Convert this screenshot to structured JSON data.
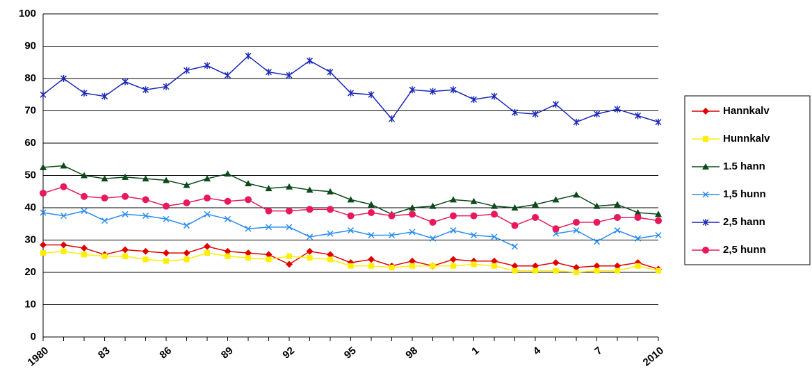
{
  "chart_data": {
    "type": "line",
    "categories": [
      "1980",
      null,
      null,
      "83",
      null,
      null,
      "86",
      null,
      null,
      "89",
      null,
      null,
      "92",
      null,
      null,
      "95",
      null,
      null,
      "98",
      null,
      null,
      "1",
      null,
      null,
      "4",
      null,
      null,
      "7",
      null,
      null,
      "2010"
    ],
    "ylim": [
      0,
      100
    ],
    "yticks": [
      0,
      10,
      20,
      30,
      40,
      50,
      60,
      70,
      80,
      90,
      100
    ],
    "grid": true,
    "legend": "right",
    "series": [
      {
        "name": "Hannkalv",
        "color": "#e00000",
        "marker": "diamond",
        "values": [
          28.5,
          28.5,
          27.5,
          25.5,
          27,
          26.5,
          26,
          26,
          28,
          26.5,
          26,
          25.5,
          22.5,
          26.5,
          25.5,
          23,
          24,
          22,
          23.5,
          22,
          24,
          23.5,
          23.5,
          22,
          22,
          23,
          21.5,
          22,
          22,
          23,
          21
        ]
      },
      {
        "name": "Hunnkalv",
        "color": "#ffee00",
        "marker": "square",
        "values": [
          26,
          26.5,
          25.5,
          25,
          25,
          24,
          23.5,
          24,
          26,
          25,
          24.5,
          24,
          25,
          24.5,
          24,
          22,
          22,
          21.5,
          22,
          22,
          22,
          22.5,
          22,
          20.5,
          20.5,
          20.5,
          20,
          20.5,
          20.5,
          22,
          20.5
        ]
      },
      {
        "name": "1.5 hann",
        "color": "#0b4a1a",
        "marker": "triangle",
        "values": [
          52.5,
          53,
          50,
          49,
          49.5,
          49,
          48.5,
          47,
          49,
          50.5,
          47.5,
          46,
          46.5,
          45.5,
          45,
          42.5,
          41,
          38,
          40,
          40.5,
          42.5,
          42,
          40.5,
          40,
          41,
          42.5,
          44,
          40.5,
          41,
          38.5,
          38
        ]
      },
      {
        "name": "1,5 hunn",
        "color": "#2a8cf0",
        "marker": "x",
        "values": [
          38.5,
          37.5,
          39,
          36,
          38,
          37.5,
          36.5,
          34.5,
          38,
          36.5,
          33.5,
          34,
          34,
          31,
          32,
          33,
          31.5,
          31.5,
          32.5,
          30.5,
          33,
          31.5,
          31,
          28,
          null,
          32,
          33,
          29.5,
          33,
          30.5,
          31.5
        ]
      },
      {
        "name": "2,5 hann",
        "color": "#1a27b8",
        "marker": "star",
        "values": [
          75,
          80,
          75.5,
          74.5,
          79,
          76.5,
          77.5,
          82.5,
          84,
          81,
          87,
          82,
          81,
          85.5,
          82,
          75.5,
          75,
          67.5,
          76.5,
          76,
          76.5,
          73.5,
          74.5,
          69.5,
          69,
          72,
          66.5,
          69,
          70.5,
          68.5,
          66.5
        ]
      },
      {
        "name": "2,5 hunn",
        "color": "#e8185a",
        "marker": "circle",
        "values": [
          44.5,
          46.5,
          43.5,
          43,
          43.5,
          42.5,
          40.5,
          41.5,
          43,
          42,
          42.5,
          39,
          39,
          39.5,
          39.5,
          37.5,
          38.5,
          37.5,
          38,
          35.5,
          37.5,
          37.5,
          38,
          34.5,
          37,
          33.5,
          35.5,
          35.5,
          37,
          37,
          36
        ]
      }
    ]
  }
}
